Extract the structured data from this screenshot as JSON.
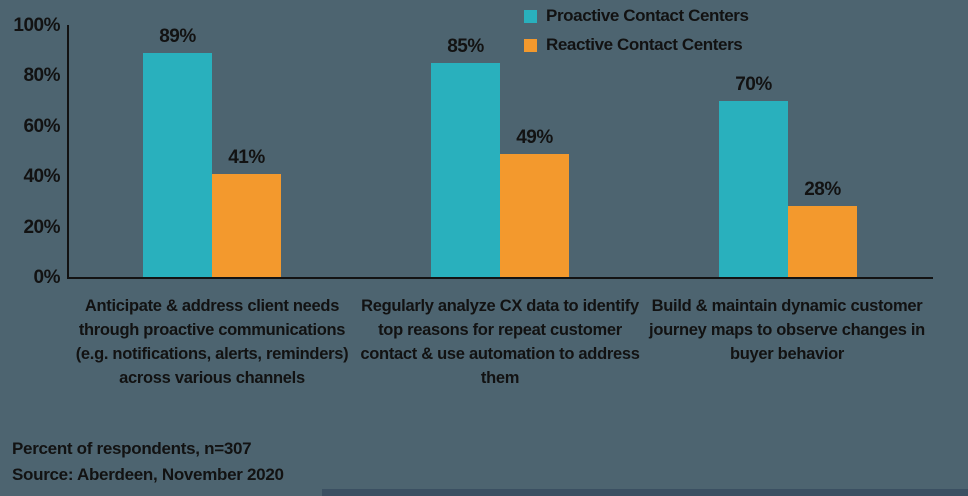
{
  "colors": {
    "background": "#4d6470",
    "proactive_teal": "#29b0bd",
    "reactive_orange": "#f3992d",
    "text": "#121212",
    "bottom_strip": "#3b5062"
  },
  "legend": [
    {
      "label": "Proactive Contact Centers",
      "color": "#29b0bd"
    },
    {
      "label": "Reactive Contact Centers",
      "color": "#f3992d"
    }
  ],
  "footer": {
    "line1": "Percent of respondents, n=307",
    "line2": "Source: Aberdeen, November 2020"
  },
  "chart_data": {
    "type": "bar",
    "title": "",
    "xlabel": "",
    "ylabel": "",
    "categories": [
      "Anticipate & address client needs through proactive communications (e.g. notifications, alerts, reminders) across various channels",
      "Regularly analyze CX data to identify top reasons for repeat customer contact & use automation to address them",
      "Build & maintain dynamic customer journey maps to observe changes in buyer behavior"
    ],
    "series": [
      {
        "name": "Proactive Contact Centers",
        "color": "#29b0bd",
        "values": [
          89,
          85,
          70
        ]
      },
      {
        "name": "Reactive Contact Centers",
        "color": "#f3992d",
        "values": [
          41,
          49,
          28
        ]
      }
    ],
    "value_suffix": "%",
    "data_labels": [
      "89%",
      "41%",
      "85%",
      "49%",
      "70%",
      "28%"
    ],
    "y_ticks": [
      "0%",
      "20%",
      "40%",
      "60%",
      "80%",
      "100%"
    ],
    "ylim": [
      0,
      100
    ],
    "grid": false,
    "legend_position": "top-center"
  }
}
